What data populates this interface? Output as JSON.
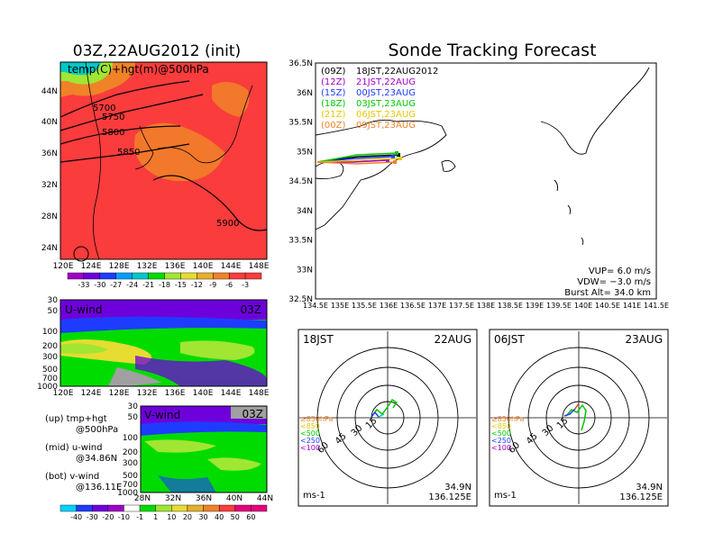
{
  "colors": {
    "temp_shades": [
      "#a000c8",
      "#6e00dc",
      "#1e3cff",
      "#00a0ff",
      "#00c8c8",
      "#00dc00",
      "#a0e632",
      "#e6dc32",
      "#e6af2d",
      "#f08228",
      "#fa3c3c"
    ],
    "wind_shades": [
      "#00d2ff",
      "#1e3cff",
      "#6e00dc",
      "#a000c8",
      "#ffffff",
      "#00dc00",
      "#a0e632",
      "#e6dc32",
      "#e6af2d",
      "#f08228",
      "#fa3c3c",
      "#e6007d"
    ],
    "series_09z": "#000000",
    "series_12z": "#a000c8",
    "series_15z": "#1e3cff",
    "series_18z": "#00c800",
    "series_21z": "#e6c800",
    "series_00z": "#f08228"
  },
  "left": {
    "title": "03Z,22AUG2012 (init)",
    "map_label": "temp(C)+hgt(m)@500hPa",
    "contours": [
      "5700",
      "5750",
      "5800",
      "5850",
      "5900"
    ],
    "lat_labels": [
      "44N",
      "40N",
      "36N",
      "32N",
      "28N",
      "24N"
    ],
    "lon_labels": [
      "120E",
      "124E",
      "128E",
      "132E",
      "136E",
      "140E",
      "144E",
      "148E"
    ],
    "temp_bar_labels": [
      "-33",
      "-30",
      "-27",
      "-24",
      "-21",
      "-18",
      "-15",
      "-12",
      "-9",
      "-6",
      "-3"
    ],
    "uwind": {
      "label": "U-wind",
      "time": "03Z",
      "p_labels": [
        "30",
        "50",
        "100",
        "200",
        "300",
        "500",
        "700",
        "1000"
      ],
      "lon_labels": [
        "120E",
        "124E",
        "128E",
        "132E",
        "136E",
        "140E",
        "144E",
        "148E"
      ]
    },
    "vwind": {
      "label": "V-wind",
      "time": "03Z",
      "p_labels": [
        "30",
        "50",
        "100",
        "200",
        "300",
        "500",
        "700",
        "1000"
      ],
      "lat_labels": [
        "28N",
        "32N",
        "36N",
        "40N",
        "44N"
      ]
    },
    "notes": {
      "up": "(up) tmp+hgt",
      "up2": "@500hPa",
      "mid": "(mid) u-wind",
      "mid2": "@34.86N",
      "bot": "(bot) v-wind",
      "bot2": "@136.11E"
    },
    "wind_bar_labels": [
      "-40",
      "-30",
      "-20",
      "-10",
      "-1",
      "1",
      "10",
      "20",
      "30",
      "40",
      "50",
      "60"
    ]
  },
  "right": {
    "title": "Sonde Tracking Forecast",
    "legend": [
      {
        "time": "(09Z)",
        "text": "18JST,22AUG2012"
      },
      {
        "time": "(12Z)",
        "text": "21JST,22AUG"
      },
      {
        "time": "(15Z)",
        "text": "00JST,23AUG"
      },
      {
        "time": "(18Z)",
        "text": "03JST,23AUG"
      },
      {
        "time": "(21Z)",
        "text": "06JST,23AUG"
      },
      {
        "time": "(00Z)",
        "text": "09JST,23AUG"
      }
    ],
    "lat_labels": [
      "36.5N",
      "36N",
      "35.5N",
      "35N",
      "34.5N",
      "34N",
      "33.5N",
      "33N",
      "32.5N"
    ],
    "lon_labels": [
      "134.5E",
      "135E",
      "135.5E",
      "136E",
      "136.5E",
      "137E",
      "137.5E",
      "138E",
      "138.5E",
      "139E",
      "139.5E",
      "140E",
      "140.5E",
      "141E",
      "141.5E"
    ],
    "info": {
      "vup": "VUP= 6.0 m/s",
      "vdw": "VDW= −3.0 m/s",
      "burst": "Burst Alt= 34.0 km"
    },
    "hodo1": {
      "time": "18JST",
      "date": "22AUG",
      "unit": "ms-1",
      "lat": "34.9N",
      "lon": "136.125E"
    },
    "hodo2": {
      "time": "06JST",
      "date": "23AUG",
      "unit": "ms-1",
      "lat": "34.9N",
      "lon": "136.125E"
    },
    "ring_labels": [
      "15",
      "30",
      "45",
      "60"
    ],
    "levels": [
      "≥850hPa",
      "<850",
      "<500",
      "<250",
      "<100"
    ]
  }
}
